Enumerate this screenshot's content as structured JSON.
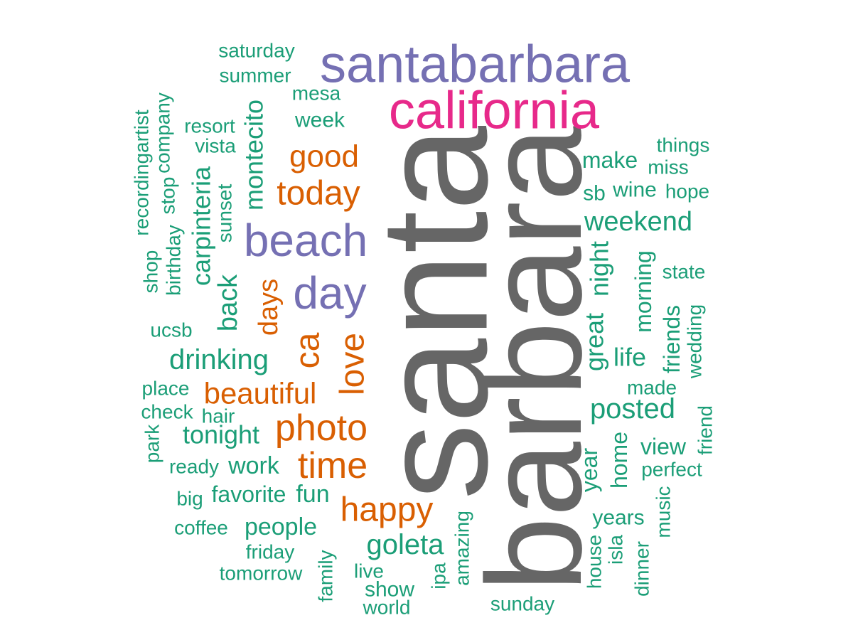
{
  "colors": {
    "gray": "#666666",
    "magenta": "#E7298A",
    "purple": "#7570B3",
    "orange": "#D95F02",
    "green": "#1B9E77"
  },
  "words": [
    {
      "text": "santa",
      "color": "gray",
      "vertical": true
    },
    {
      "text": "barbara",
      "color": "gray",
      "vertical": true
    },
    {
      "text": "santabarbara",
      "color": "purple",
      "vertical": false
    },
    {
      "text": "california",
      "color": "magenta",
      "vertical": false
    },
    {
      "text": "beach",
      "color": "purple",
      "vertical": false
    },
    {
      "text": "day",
      "color": "purple",
      "vertical": false
    },
    {
      "text": "today",
      "color": "orange",
      "vertical": false
    },
    {
      "text": "good",
      "color": "orange",
      "vertical": false
    },
    {
      "text": "photo",
      "color": "orange",
      "vertical": false
    },
    {
      "text": "time",
      "color": "orange",
      "vertical": false
    },
    {
      "text": "happy",
      "color": "orange",
      "vertical": false
    },
    {
      "text": "beautiful",
      "color": "orange",
      "vertical": false
    },
    {
      "text": "love",
      "color": "orange",
      "vertical": true
    },
    {
      "text": "ca",
      "color": "orange",
      "vertical": true
    },
    {
      "text": "days",
      "color": "orange",
      "vertical": true
    },
    {
      "text": "saturday",
      "color": "green",
      "vertical": false
    },
    {
      "text": "summer",
      "color": "green",
      "vertical": false
    },
    {
      "text": "mesa",
      "color": "green",
      "vertical": false
    },
    {
      "text": "week",
      "color": "green",
      "vertical": false
    },
    {
      "text": "resort",
      "color": "green",
      "vertical": false
    },
    {
      "text": "vista",
      "color": "green",
      "vertical": false
    },
    {
      "text": "montecito",
      "color": "green",
      "vertical": true
    },
    {
      "text": "carpinteria",
      "color": "green",
      "vertical": true
    },
    {
      "text": "sunset",
      "color": "green",
      "vertical": true
    },
    {
      "text": "recordingartist",
      "color": "green",
      "vertical": true
    },
    {
      "text": "company",
      "color": "green",
      "vertical": true
    },
    {
      "text": "stop",
      "color": "green",
      "vertical": true
    },
    {
      "text": "birthday",
      "color": "green",
      "vertical": true
    },
    {
      "text": "shop",
      "color": "green",
      "vertical": true
    },
    {
      "text": "back",
      "color": "green",
      "vertical": true
    },
    {
      "text": "ucsb",
      "color": "green",
      "vertical": false
    },
    {
      "text": "drinking",
      "color": "green",
      "vertical": false
    },
    {
      "text": "place",
      "color": "green",
      "vertical": false
    },
    {
      "text": "check",
      "color": "green",
      "vertical": false
    },
    {
      "text": "hair",
      "color": "green",
      "vertical": false
    },
    {
      "text": "tonight",
      "color": "green",
      "vertical": false
    },
    {
      "text": "park",
      "color": "green",
      "vertical": true
    },
    {
      "text": "ready",
      "color": "green",
      "vertical": false
    },
    {
      "text": "work",
      "color": "green",
      "vertical": false
    },
    {
      "text": "big",
      "color": "green",
      "vertical": false
    },
    {
      "text": "favorite",
      "color": "green",
      "vertical": false
    },
    {
      "text": "fun",
      "color": "green",
      "vertical": false
    },
    {
      "text": "coffee",
      "color": "green",
      "vertical": false
    },
    {
      "text": "people",
      "color": "green",
      "vertical": false
    },
    {
      "text": "friday",
      "color": "green",
      "vertical": false
    },
    {
      "text": "tomorrow",
      "color": "green",
      "vertical": false
    },
    {
      "text": "family",
      "color": "green",
      "vertical": true
    },
    {
      "text": "goleta",
      "color": "green",
      "vertical": false
    },
    {
      "text": "live",
      "color": "green",
      "vertical": false
    },
    {
      "text": "show",
      "color": "green",
      "vertical": false
    },
    {
      "text": "world",
      "color": "green",
      "vertical": false
    },
    {
      "text": "ipa",
      "color": "green",
      "vertical": true
    },
    {
      "text": "amazing",
      "color": "green",
      "vertical": true
    },
    {
      "text": "sunday",
      "color": "green",
      "vertical": false
    },
    {
      "text": "make",
      "color": "green",
      "vertical": false
    },
    {
      "text": "things",
      "color": "green",
      "vertical": false
    },
    {
      "text": "miss",
      "color": "green",
      "vertical": false
    },
    {
      "text": "sb",
      "color": "green",
      "vertical": false
    },
    {
      "text": "wine",
      "color": "green",
      "vertical": false
    },
    {
      "text": "hope",
      "color": "green",
      "vertical": false
    },
    {
      "text": "weekend",
      "color": "green",
      "vertical": false
    },
    {
      "text": "night",
      "color": "green",
      "vertical": true
    },
    {
      "text": "great",
      "color": "green",
      "vertical": true
    },
    {
      "text": "morning",
      "color": "green",
      "vertical": true
    },
    {
      "text": "state",
      "color": "green",
      "vertical": false
    },
    {
      "text": "life",
      "color": "green",
      "vertical": false
    },
    {
      "text": "friends",
      "color": "green",
      "vertical": true
    },
    {
      "text": "wedding",
      "color": "green",
      "vertical": true
    },
    {
      "text": "made",
      "color": "green",
      "vertical": false
    },
    {
      "text": "posted",
      "color": "green",
      "vertical": false
    },
    {
      "text": "year",
      "color": "green",
      "vertical": true
    },
    {
      "text": "home",
      "color": "green",
      "vertical": true
    },
    {
      "text": "view",
      "color": "green",
      "vertical": false
    },
    {
      "text": "perfect",
      "color": "green",
      "vertical": false
    },
    {
      "text": "friend",
      "color": "green",
      "vertical": true
    },
    {
      "text": "years",
      "color": "green",
      "vertical": false
    },
    {
      "text": "music",
      "color": "green",
      "vertical": true
    },
    {
      "text": "house",
      "color": "green",
      "vertical": true
    },
    {
      "text": "isla",
      "color": "green",
      "vertical": true
    },
    {
      "text": "dinner",
      "color": "green",
      "vertical": true
    }
  ]
}
